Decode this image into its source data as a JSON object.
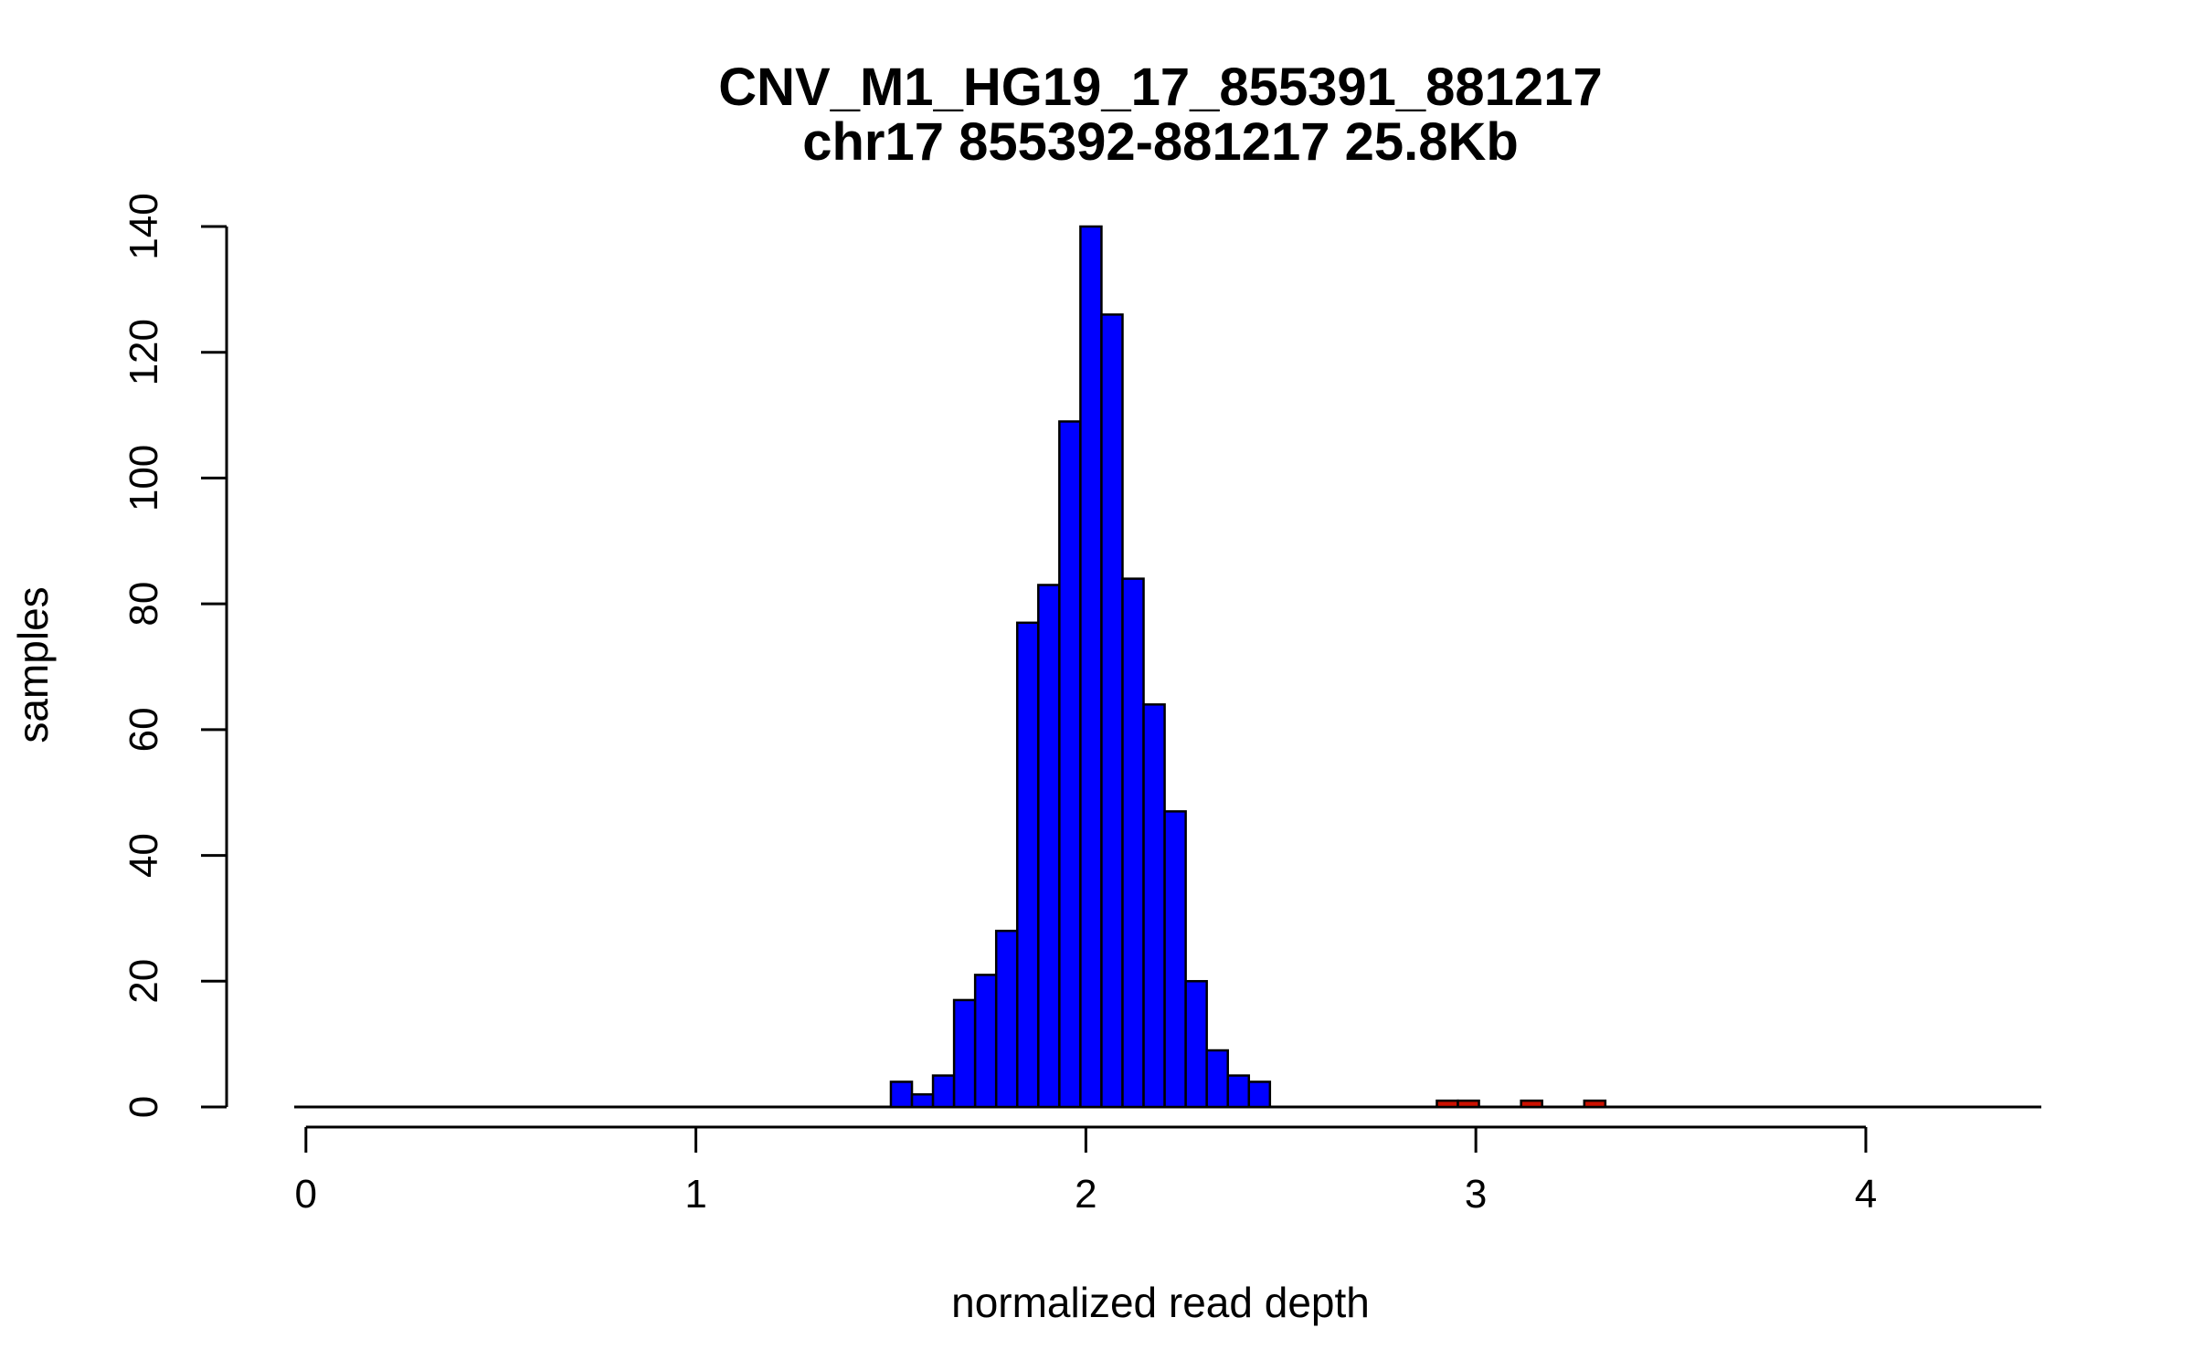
{
  "chart_data": {
    "type": "bar",
    "title": "CNV_M1_HG19_17_855391_881217",
    "subtitle": "chr17 855392-881217 25.8Kb",
    "xlabel": "normalized read depth",
    "ylabel": "samples",
    "xlim": [
      -0.03,
      4.45
    ],
    "ylim": [
      0,
      140
    ],
    "x_ticks": [
      "0",
      "1",
      "2",
      "3",
      "4"
    ],
    "y_ticks": [
      "0",
      "20",
      "40",
      "60",
      "80",
      "100",
      "120",
      "140"
    ],
    "bin_width": 0.054,
    "grid": false,
    "colors": {
      "main": "#0000FF",
      "outlier": "#CC1100",
      "outline": "#000000"
    },
    "series": [
      {
        "name": "",
        "color": "#0000FF",
        "bin_starts": [
          1.5,
          1.554,
          1.608,
          1.662,
          1.716,
          1.77,
          1.824,
          1.878,
          1.932,
          1.986,
          2.04,
          2.094,
          2.148,
          2.202,
          2.256,
          2.31,
          2.364,
          2.418
        ],
        "values": [
          4,
          2,
          5,
          17,
          21,
          28,
          77,
          83,
          109,
          140,
          126,
          84,
          64,
          47,
          20,
          9,
          5,
          4
        ]
      },
      {
        "name": "",
        "color": "#CC1100",
        "bin_starts": [
          2.9,
          2.954,
          3.116,
          3.278
        ],
        "values": [
          1,
          1,
          1,
          1
        ]
      }
    ]
  }
}
